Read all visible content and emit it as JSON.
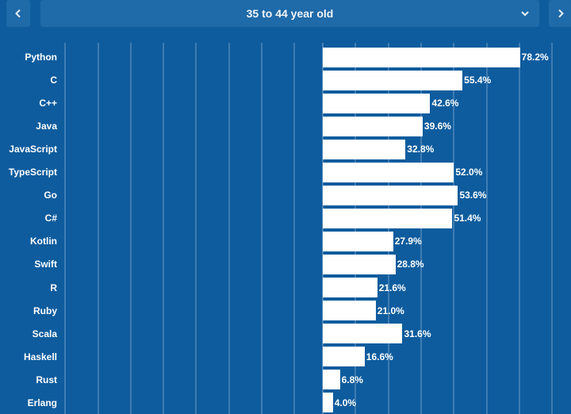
{
  "header": {
    "selected_group": "35 to 44 year old",
    "prev_icon": "chevron-left-icon",
    "next_icon": "chevron-right-icon",
    "dropdown_icon": "chevron-down-icon"
  },
  "colors": {
    "background": "#0e5c9e",
    "control": "#1f6aa9",
    "bar": "#ffffff",
    "gridline": "#6f9cc6"
  },
  "chart_data": {
    "type": "bar",
    "orientation": "horizontal",
    "title": "35 to 44 year old",
    "categories": [
      "Python",
      "C",
      "C++",
      "Java",
      "JavaScript",
      "TypeScript",
      "Go",
      "C#",
      "Kotlin",
      "Swift",
      "R",
      "Ruby",
      "Scala",
      "Haskell",
      "Rust",
      "Erlang"
    ],
    "values": [
      78.2,
      55.4,
      42.6,
      39.6,
      32.8,
      52.0,
      53.6,
      51.4,
      27.9,
      28.8,
      21.6,
      21.0,
      31.6,
      16.6,
      6.8,
      4.0
    ],
    "value_labels": [
      "78.2%",
      "55.4%",
      "42.6%",
      "39.6%",
      "32.8%",
      "52.0%",
      "53.6%",
      "51.4%",
      "27.9%",
      "28.8%",
      "21.6%",
      "21.0%",
      "31.6%",
      "16.6%",
      "6.8%",
      "4.0%"
    ],
    "unit": "%",
    "xlim": [
      0,
      100
    ],
    "grid": true
  }
}
